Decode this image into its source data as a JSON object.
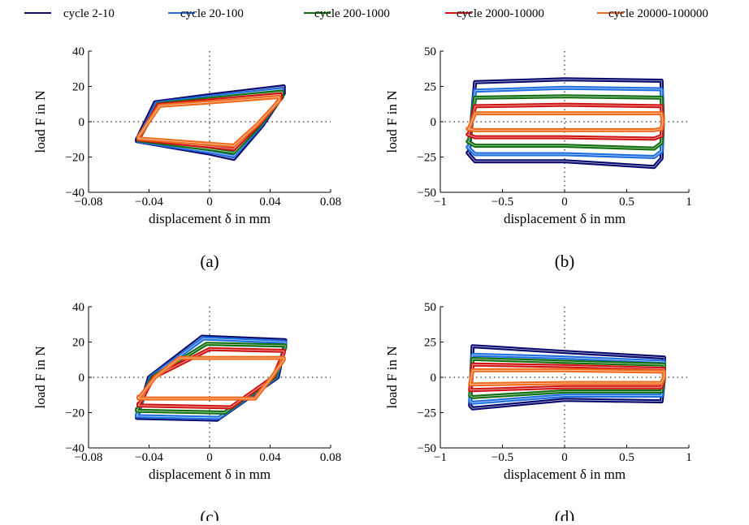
{
  "legend": {
    "entries": [
      {
        "label": "cycle 2-10",
        "color": "#0a0a6e"
      },
      {
        "label": "cycle 20-100",
        "color": "#1f6fe0"
      },
      {
        "label": "cycle 200-1000",
        "color": "#127012"
      },
      {
        "label": "cycle 2000-10000",
        "color": "#d01414"
      },
      {
        "label": "cycle 20000-100000",
        "color": "#f06a1c"
      }
    ]
  },
  "chart_data": [
    {
      "type": "line",
      "panel_label": "(a)",
      "xlabel": "displacement δ in mm",
      "ylabel": "load F in N",
      "xlim": [
        -0.08,
        0.08
      ],
      "ylim": [
        -40,
        40
      ],
      "xticks": [
        -0.08,
        -0.04,
        0,
        0.04,
        0.08
      ],
      "xtick_labels": [
        "−0.08",
        "−0.04",
        "0",
        "0.04",
        "0.08"
      ],
      "yticks": [
        -40,
        -20,
        0,
        20,
        40
      ],
      "ytick_labels": [
        "−40",
        "−20",
        "0",
        "20",
        "40"
      ],
      "zero_lines": true,
      "series": [
        {
          "name": "cycle 2-10",
          "color": "#0a0a6e",
          "x": [
            -0.048,
            -0.036,
            0,
            0.049,
            0.049,
            0.035,
            0.016,
            0.0,
            -0.048,
            -0.048
          ],
          "y": [
            -10,
            11,
            15,
            20,
            16,
            -2,
            -21,
            -18,
            -11,
            -10
          ]
        },
        {
          "name": "cycle 20-100",
          "color": "#1f6fe0",
          "x": [
            -0.047,
            -0.035,
            0,
            0.048,
            0.048,
            0.034,
            0.016,
            0.0,
            -0.047,
            -0.047
          ],
          "y": [
            -10,
            10.5,
            14,
            18.5,
            15,
            -2,
            -19.5,
            -17,
            -11,
            -10
          ]
        },
        {
          "name": "cycle 200-1000",
          "color": "#127012",
          "x": [
            -0.047,
            -0.034,
            0,
            0.048,
            0.048,
            0.033,
            0.016,
            0.0,
            -0.047,
            -0.047
          ],
          "y": [
            -10,
            10,
            13,
            17,
            14,
            -2,
            -17.5,
            -15.5,
            -10.5,
            -10
          ]
        },
        {
          "name": "cycle 2000-10000",
          "color": "#d01414",
          "x": [
            -0.047,
            -0.034,
            0,
            0.047,
            0.047,
            0.032,
            0.016,
            0.0,
            -0.047,
            -0.047
          ],
          "y": [
            -9.5,
            9.5,
            12,
            15.5,
            13,
            -2,
            -15.5,
            -14,
            -10,
            -9.5
          ]
        },
        {
          "name": "cycle 20000-100000",
          "color": "#f06a1c",
          "x": [
            -0.047,
            -0.033,
            0,
            0.046,
            0.046,
            0.031,
            0.016,
            0.0,
            -0.047,
            -0.047
          ],
          "y": [
            -8.5,
            9,
            11,
            14,
            12,
            -2,
            -13.5,
            -12.5,
            -9.5,
            -8.5
          ]
        }
      ]
    },
    {
      "type": "line",
      "panel_label": "(b)",
      "xlabel": "displacement δ in mm",
      "ylabel": "load F in N",
      "xlim": [
        -1,
        1
      ],
      "ylim": [
        -50,
        50
      ],
      "xticks": [
        -1,
        -0.5,
        0,
        0.5,
        1
      ],
      "xtick_labels": [
        "−1",
        "−0.5",
        "0",
        "0.5",
        "1"
      ],
      "yticks": [
        -50,
        -25,
        0,
        25,
        50
      ],
      "ytick_labels": [
        "−50",
        "−25",
        "0",
        "25",
        "50"
      ],
      "zero_lines": true,
      "series": [
        {
          "name": "cycle 2-10",
          "color": "#0a0a6e",
          "x": [
            -0.77,
            -0.72,
            0,
            0.78,
            0.79,
            0.78,
            0.72,
            0,
            -0.72,
            -0.78,
            -0.77
          ],
          "y": [
            -22,
            28,
            30,
            29,
            0,
            -26,
            -32,
            -28,
            -28,
            -22,
            -22
          ]
        },
        {
          "name": "cycle 20-100",
          "color": "#1f6fe0",
          "x": [
            -0.77,
            -0.72,
            0,
            0.78,
            0.79,
            0.78,
            0.72,
            0,
            -0.72,
            -0.78,
            -0.77
          ],
          "y": [
            -18,
            22,
            24,
            23,
            0,
            -21,
            -25,
            -23,
            -23,
            -18,
            -18
          ]
        },
        {
          "name": "cycle 200-1000",
          "color": "#127012",
          "x": [
            -0.77,
            -0.72,
            0,
            0.78,
            0.79,
            0.78,
            0.72,
            0,
            -0.72,
            -0.78,
            -0.77
          ],
          "y": [
            -14,
            17,
            18,
            17,
            0,
            -15,
            -19,
            -17,
            -17,
            -14,
            -14
          ]
        },
        {
          "name": "cycle 2000-10000",
          "color": "#d01414",
          "x": [
            -0.77,
            -0.72,
            0,
            0.78,
            0.79,
            0.78,
            0.72,
            0,
            -0.72,
            -0.78,
            -0.77
          ],
          "y": [
            -9,
            11,
            12,
            11,
            0,
            -10,
            -12,
            -11,
            -11,
            -9,
            -9
          ]
        },
        {
          "name": "cycle 20000-100000",
          "color": "#f06a1c",
          "x": [
            -0.77,
            -0.72,
            0,
            0.78,
            0.79,
            0.78,
            0.72,
            0,
            -0.72,
            -0.78,
            -0.77
          ],
          "y": [
            -5,
            6,
            6,
            6,
            0,
            -5,
            -6,
            -6,
            -6,
            -5,
            -5
          ]
        }
      ]
    },
    {
      "type": "line",
      "panel_label": "(c)",
      "xlabel": "displacement δ in mm",
      "ylabel": "load F in N",
      "xlim": [
        -0.08,
        0.08
      ],
      "ylim": [
        -40,
        40
      ],
      "xticks": [
        -0.08,
        -0.04,
        0,
        0.04,
        0.08
      ],
      "xtick_labels": [
        "−0.08",
        "−0.04",
        "0",
        "0.04",
        "0.08"
      ],
      "yticks": [
        -40,
        -20,
        0,
        20,
        40
      ],
      "ytick_labels": [
        "−40",
        "−20",
        "0",
        "20",
        "40"
      ],
      "zero_lines": true,
      "series": [
        {
          "name": "cycle 2-10",
          "color": "#0a0a6e",
          "x": [
            -0.048,
            -0.04,
            -0.005,
            0.05,
            0.05,
            0.045,
            0.005,
            -0.048,
            -0.048
          ],
          "y": [
            -23,
            0,
            23,
            21,
            20,
            0,
            -24,
            -23,
            -22
          ]
        },
        {
          "name": "cycle 20-100",
          "color": "#1f6fe0",
          "x": [
            -0.048,
            -0.039,
            -0.004,
            0.05,
            0.05,
            0.044,
            0.006,
            -0.048,
            -0.048
          ],
          "y": [
            -22,
            0,
            22,
            20,
            19,
            0,
            -23,
            -22,
            -21
          ]
        },
        {
          "name": "cycle 200-1000",
          "color": "#127012",
          "x": [
            -0.048,
            -0.038,
            -0.002,
            0.05,
            0.05,
            0.043,
            0.01,
            -0.048,
            -0.048
          ],
          "y": [
            -19,
            0,
            19,
            18,
            17,
            0,
            -20,
            -19,
            -18
          ]
        },
        {
          "name": "cycle 2000-10000",
          "color": "#d01414",
          "x": [
            -0.047,
            -0.037,
            0.0,
            0.049,
            0.049,
            0.042,
            0.014,
            -0.047,
            -0.047
          ],
          "y": [
            -16,
            0,
            16,
            15,
            14,
            0,
            -17,
            -16,
            -15
          ]
        },
        {
          "name": "cycle 20000-100000",
          "color": "#f06a1c",
          "x": [
            -0.047,
            -0.036,
            -0.02,
            0.049,
            0.049,
            0.041,
            0.03,
            -0.047,
            -0.047
          ],
          "y": [
            -12,
            0,
            11,
            11,
            10,
            0,
            -12,
            -12,
            -11
          ]
        }
      ]
    },
    {
      "type": "line",
      "panel_label": "(d)",
      "xlabel": "displacement δ in mm",
      "ylabel": "load F in N",
      "xlim": [
        -1,
        1
      ],
      "ylim": [
        -50,
        50
      ],
      "xticks": [
        -1,
        -0.5,
        0,
        0.5,
        1
      ],
      "xtick_labels": [
        "−1",
        "−0.5",
        "0",
        "0.5",
        "1"
      ],
      "yticks": [
        -50,
        -25,
        0,
        25,
        50
      ],
      "ytick_labels": [
        "−50",
        "−25",
        "0",
        "25",
        "50"
      ],
      "zero_lines": true,
      "series": [
        {
          "name": "cycle 2-10",
          "color": "#0a0a6e",
          "x": [
            -0.76,
            -0.74,
            0,
            0.8,
            0.8,
            0.78,
            0,
            -0.74,
            -0.76
          ],
          "y": [
            -20,
            22,
            18,
            14,
            0,
            -17,
            -16,
            -22,
            -20
          ]
        },
        {
          "name": "cycle 20-100",
          "color": "#1f6fe0",
          "x": [
            -0.76,
            -0.74,
            0,
            0.8,
            0.8,
            0.78,
            0,
            -0.74,
            -0.76
          ],
          "y": [
            -17,
            16,
            14,
            11,
            0,
            -13,
            -13,
            -18,
            -17
          ]
        },
        {
          "name": "cycle 200-1000",
          "color": "#127012",
          "x": [
            -0.76,
            -0.74,
            0,
            0.8,
            0.8,
            0.78,
            0,
            -0.74,
            -0.76
          ],
          "y": [
            -13,
            13,
            11,
            9,
            0,
            -10,
            -10,
            -14,
            -13
          ]
        },
        {
          "name": "cycle 2000-10000",
          "color": "#d01414",
          "x": [
            -0.76,
            -0.74,
            0,
            0.8,
            0.8,
            0.78,
            0,
            -0.74,
            -0.76
          ],
          "y": [
            -9,
            9,
            8,
            6,
            0,
            -7,
            -7,
            -9,
            -9
          ]
        },
        {
          "name": "cycle 20000-100000",
          "color": "#f06a1c",
          "x": [
            -0.76,
            -0.74,
            0,
            0.8,
            0.8,
            0.78,
            0,
            -0.74,
            -0.76
          ],
          "y": [
            -5,
            5,
            5,
            4,
            0,
            -4,
            -4,
            -5,
            -5
          ]
        }
      ]
    }
  ]
}
